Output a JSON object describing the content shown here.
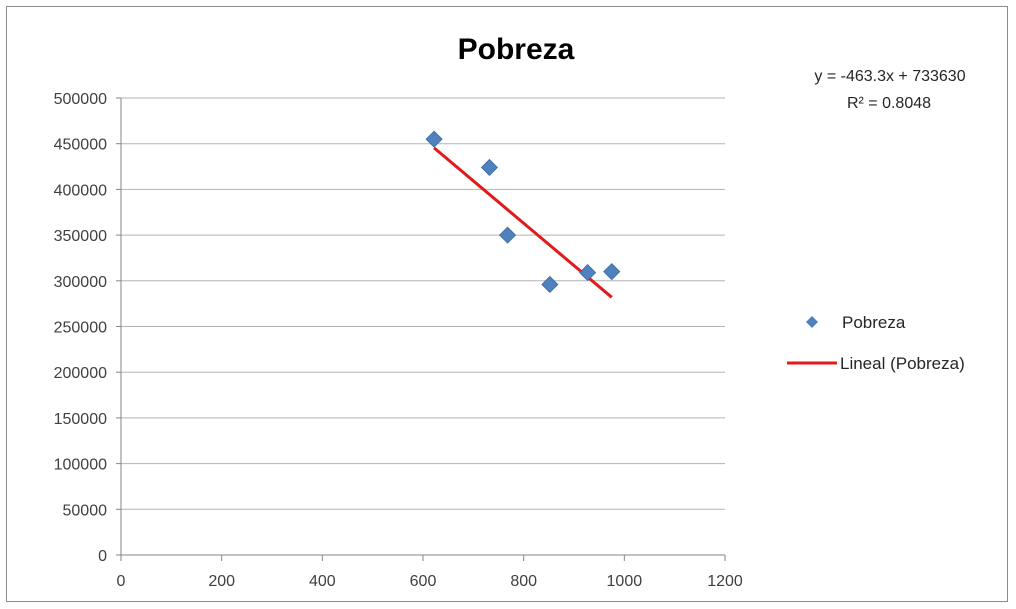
{
  "chart_data": {
    "type": "scatter",
    "title": "Pobreza",
    "xlabel": "",
    "ylabel": "",
    "xlim": [
      0,
      1200
    ],
    "ylim": [
      0,
      500000
    ],
    "x_ticks": [
      "0",
      "200",
      "400",
      "600",
      "800",
      "1000",
      "1200"
    ],
    "y_ticks": [
      "0",
      "50000",
      "100000",
      "150000",
      "200000",
      "250000",
      "300000",
      "350000",
      "400000",
      "450000",
      "500000"
    ],
    "grid": "horizontal",
    "legend_position": "right",
    "series": [
      {
        "name": "Pobreza",
        "marker": "diamond",
        "color": "#4f81bd",
        "points": [
          {
            "x": 622,
            "y": 455000
          },
          {
            "x": 732,
            "y": 424000
          },
          {
            "x": 768,
            "y": 350000
          },
          {
            "x": 852,
            "y": 296000
          },
          {
            "x": 927,
            "y": 309000
          },
          {
            "x": 975,
            "y": 310000
          }
        ]
      }
    ],
    "trendline": {
      "name": "Lineal (Pobreza)",
      "type": "linear",
      "color": "#e31a1c",
      "slope": -463.3,
      "intercept": 733630,
      "x_from": 622,
      "x_to": 975,
      "equation": "y = -463.3x + 733630",
      "r_squared": "R² = 0.8048"
    }
  }
}
